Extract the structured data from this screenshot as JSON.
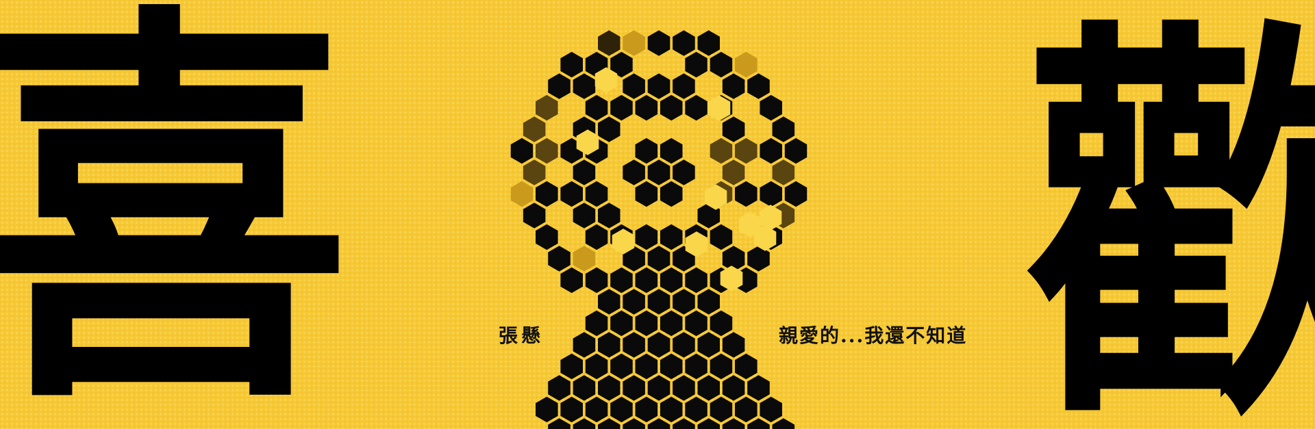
{
  "poster": {
    "char_left": "喜",
    "char_right": "歡",
    "artist": "張懸",
    "title": "親愛的...我還不知道"
  },
  "colors": {
    "background": "#f6c835",
    "ink": "#000000",
    "hex_dark": "#0a0a0a",
    "hex_olive": "#5a4510",
    "hex_brown": "#2e2208",
    "hex_gold": "#c99a1c",
    "hex_light": "#f9d64a"
  },
  "icons": {
    "honeycomb_figure": "honeycomb-figure-icon"
  }
}
